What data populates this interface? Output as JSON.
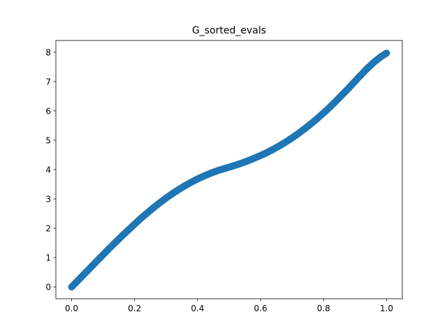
{
  "chart_data": {
    "type": "scatter",
    "title": "G_sorted_evals",
    "xlabel": "",
    "ylabel": "",
    "xlim": [
      -0.05,
      1.05
    ],
    "ylim": [
      -0.4,
      8.4
    ],
    "xticks": [
      0.0,
      0.2,
      0.4,
      0.6,
      0.8,
      1.0
    ],
    "xtick_labels": [
      "0.0",
      "0.2",
      "0.4",
      "0.6",
      "0.8",
      "1.0"
    ],
    "yticks": [
      0,
      1,
      2,
      3,
      4,
      5,
      6,
      7,
      8
    ],
    "ytick_labels": [
      "0",
      "1",
      "2",
      "3",
      "4",
      "5",
      "6",
      "7",
      "8"
    ],
    "grid": false,
    "legend": "none",
    "series": [
      {
        "color": "#1f77b4",
        "marker": "circle",
        "x": [
          0.0,
          0.02,
          0.04,
          0.06,
          0.08,
          0.1,
          0.12,
          0.14,
          0.16,
          0.18,
          0.2,
          0.22,
          0.24,
          0.26,
          0.28,
          0.3,
          0.32,
          0.34,
          0.36,
          0.38,
          0.4,
          0.42,
          0.44,
          0.46,
          0.48,
          0.5,
          0.52,
          0.54,
          0.56,
          0.58,
          0.6,
          0.62,
          0.64,
          0.66,
          0.68,
          0.7,
          0.72,
          0.74,
          0.76,
          0.78,
          0.8,
          0.82,
          0.84,
          0.86,
          0.88,
          0.9,
          0.92,
          0.94,
          0.96,
          0.98,
          1.0
        ],
        "y": [
          0.0,
          0.22,
          0.44,
          0.66,
          0.88,
          1.1,
          1.32,
          1.53,
          1.74,
          1.94,
          2.14,
          2.34,
          2.52,
          2.7,
          2.87,
          3.03,
          3.18,
          3.32,
          3.45,
          3.57,
          3.68,
          3.78,
          3.87,
          3.95,
          4.02,
          4.08,
          4.15,
          4.22,
          4.3,
          4.39,
          4.48,
          4.58,
          4.69,
          4.81,
          4.94,
          5.08,
          5.23,
          5.39,
          5.56,
          5.74,
          5.93,
          6.13,
          6.34,
          6.56,
          6.78,
          7.01,
          7.24,
          7.46,
          7.66,
          7.83,
          7.97
        ]
      }
    ]
  }
}
